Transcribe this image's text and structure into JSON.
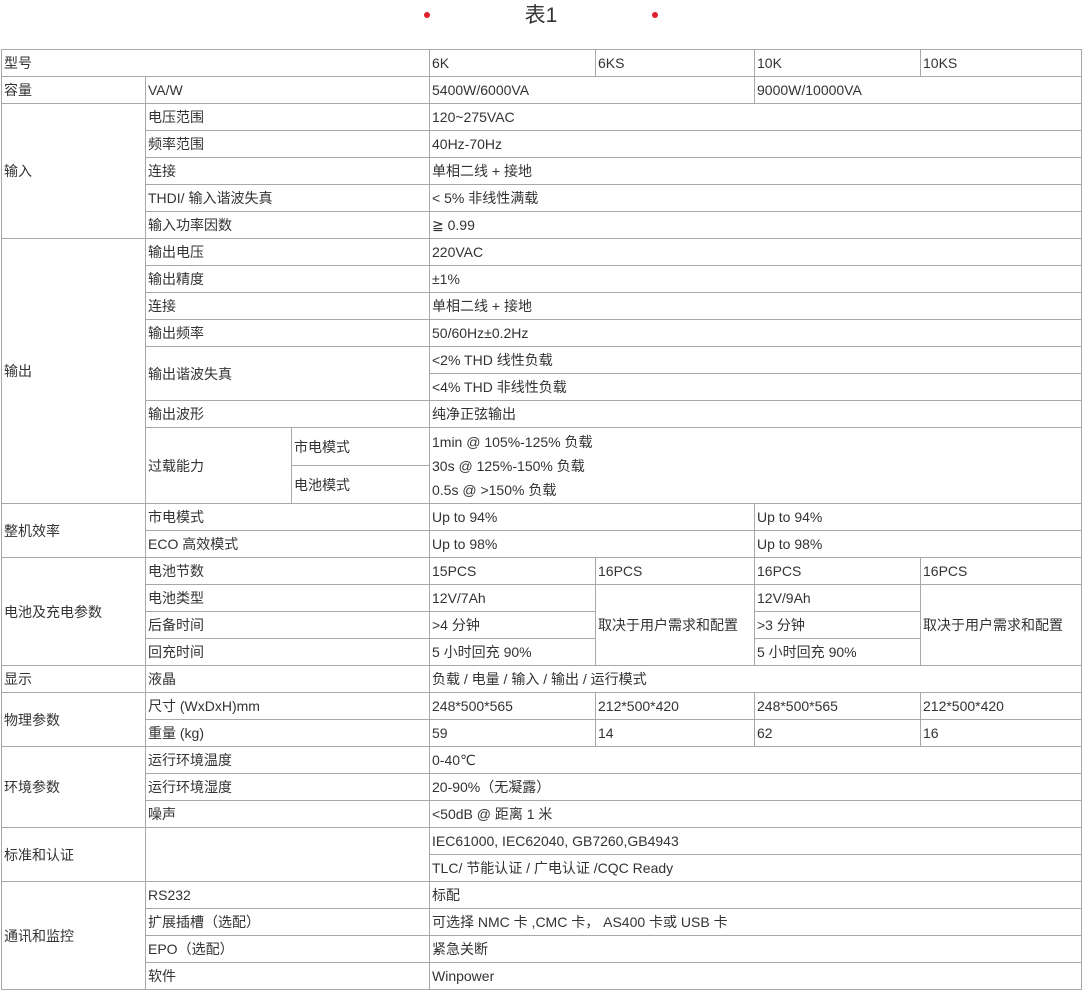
{
  "title": "表1",
  "accent_color": "#e0202a",
  "rows": [
    [
      {
        "t": "型号",
        "cs": 3
      },
      {
        "t": "6K"
      },
      {
        "t": "6KS"
      },
      {
        "t": "10K"
      },
      {
        "t": "10KS"
      }
    ],
    [
      {
        "t": "容量"
      },
      {
        "t": "VA/W",
        "cs": 2
      },
      {
        "t": "5400W/6000VA",
        "cs": 2
      },
      {
        "t": "9000W/10000VA",
        "cs": 2
      }
    ],
    [
      {
        "t": "输入",
        "rs": 5
      },
      {
        "t": "电压范围",
        "cs": 2
      },
      {
        "t": "120~275VAC",
        "cs": 4
      }
    ],
    [
      {
        "t": "频率范围",
        "cs": 2
      },
      {
        "t": "40Hz-70Hz",
        "cs": 4
      }
    ],
    [
      {
        "t": "连接",
        "cs": 2
      },
      {
        "t": "单相二线 + 接地",
        "cs": 4
      }
    ],
    [
      {
        "t": "THDI/ 输入谐波失真",
        "cs": 2
      },
      {
        "t": "< 5% 非线性满载",
        "cs": 4
      }
    ],
    [
      {
        "t": "输入功率因数",
        "cs": 2
      },
      {
        "t": "≧ 0.99",
        "cs": 4
      }
    ],
    [
      {
        "t": "输出",
        "rs": 9
      },
      {
        "t": "输出电压",
        "cs": 2
      },
      {
        "t": "220VAC",
        "cs": 4
      }
    ],
    [
      {
        "t": "输出精度",
        "cs": 2
      },
      {
        "t": "±1%",
        "cs": 4
      }
    ],
    [
      {
        "t": "连接",
        "cs": 2
      },
      {
        "t": "单相二线 + 接地",
        "cs": 4
      }
    ],
    [
      {
        "t": "输出频率",
        "cs": 2
      },
      {
        "t": "50/60Hz±0.2Hz",
        "cs": 4
      }
    ],
    [
      {
        "t": "输出谐波失真",
        "cs": 2,
        "rs": 2
      },
      {
        "t": "<2% THD 线性负载",
        "cs": 4
      }
    ],
    [
      {
        "t": "<4% THD 非线性负载",
        "cs": 4
      }
    ],
    [
      {
        "t": "输出波形",
        "cs": 2
      },
      {
        "t": "纯净正弦输出",
        "cs": 4
      }
    ],
    [
      {
        "t": "过载能力",
        "rs": 2
      },
      {
        "t": "市电模式"
      },
      {
        "lines": [
          "1min @ 105%-125% 负载",
          "30s @ 125%-150% 负载",
          "0.5s @ >150% 负载"
        ],
        "cs": 4,
        "rs": 2
      }
    ],
    [
      {
        "t": "电池模式"
      }
    ],
    [
      {
        "t": "整机效率",
        "rs": 2
      },
      {
        "t": "市电模式",
        "cs": 2
      },
      {
        "t": "Up to 94%",
        "cs": 2
      },
      {
        "t": "Up to 94%",
        "cs": 2
      }
    ],
    [
      {
        "t": "ECO 高效模式",
        "cs": 2
      },
      {
        "t": "Up to 98%",
        "cs": 2
      },
      {
        "t": "Up to 98%",
        "cs": 2
      }
    ],
    [
      {
        "t": "电池及充电参数",
        "rs": 4
      },
      {
        "t": "电池节数",
        "cs": 2
      },
      {
        "t": "15PCS"
      },
      {
        "t": "16PCS"
      },
      {
        "t": "16PCS"
      },
      {
        "t": "16PCS"
      }
    ],
    [
      {
        "t": "电池类型",
        "cs": 2
      },
      {
        "t": "12V/7Ah"
      },
      {
        "t": "取决于用户需求和配置",
        "rs": 3
      },
      {
        "t": "12V/9Ah"
      },
      {
        "t": "取决于用户需求和配置",
        "rs": 3
      }
    ],
    [
      {
        "t": "后备时间",
        "cs": 2
      },
      {
        "t": ">4 分钟"
      },
      {
        "t": ">3 分钟"
      }
    ],
    [
      {
        "t": "回充时间",
        "cs": 2
      },
      {
        "t": "5 小时回充 90%"
      },
      {
        "t": "5 小时回充 90%"
      }
    ],
    [
      {
        "t": "显示"
      },
      {
        "t": "液晶",
        "cs": 2
      },
      {
        "t": "负载 / 电量 / 输入 / 输出 / 运行模式",
        "cs": 4
      }
    ],
    [
      {
        "t": "物理参数",
        "rs": 2
      },
      {
        "t": "尺寸 (WxDxH)mm",
        "cs": 2
      },
      {
        "t": "248*500*565"
      },
      {
        "t": "212*500*420"
      },
      {
        "t": "248*500*565"
      },
      {
        "t": "212*500*420"
      }
    ],
    [
      {
        "t": "重量 (kg)",
        "cs": 2
      },
      {
        "t": "59"
      },
      {
        "t": "14"
      },
      {
        "t": "62"
      },
      {
        "t": "16"
      }
    ],
    [
      {
        "t": "环境参数",
        "rs": 3
      },
      {
        "t": "运行环境温度",
        "cs": 2
      },
      {
        "t": "0-40℃",
        "cs": 4
      }
    ],
    [
      {
        "t": "运行环境湿度",
        "cs": 2
      },
      {
        "t": "20-90%（无凝露）",
        "cs": 4
      }
    ],
    [
      {
        "t": "噪声",
        "cs": 2
      },
      {
        "t": "<50dB @ 距离 1 米",
        "cs": 4
      }
    ],
    [
      {
        "t": "标准和认证",
        "rs": 2
      },
      {
        "t": "",
        "cs": 2,
        "rs": 2
      },
      {
        "t": "IEC61000, IEC62040, GB7260,GB4943",
        "cs": 4
      }
    ],
    [
      {
        "t": "TLC/ 节能认证 / 广电认证 /CQC Ready",
        "cs": 4
      }
    ],
    [
      {
        "t": "通讯和监控",
        "rs": 4
      },
      {
        "t": "RS232",
        "cs": 2
      },
      {
        "t": "标配",
        "cs": 4
      }
    ],
    [
      {
        "t": "扩展插槽（选配）",
        "cs": 2
      },
      {
        "t": "可选择 NMC 卡 ,CMC 卡， AS400 卡或 USB 卡",
        "cs": 4
      }
    ],
    [
      {
        "t": "EPO（选配）",
        "cs": 2
      },
      {
        "t": "紧急关断",
        "cs": 4
      }
    ],
    [
      {
        "t": "软件",
        "cs": 2
      },
      {
        "t": "Winpower",
        "cs": 4
      }
    ]
  ]
}
